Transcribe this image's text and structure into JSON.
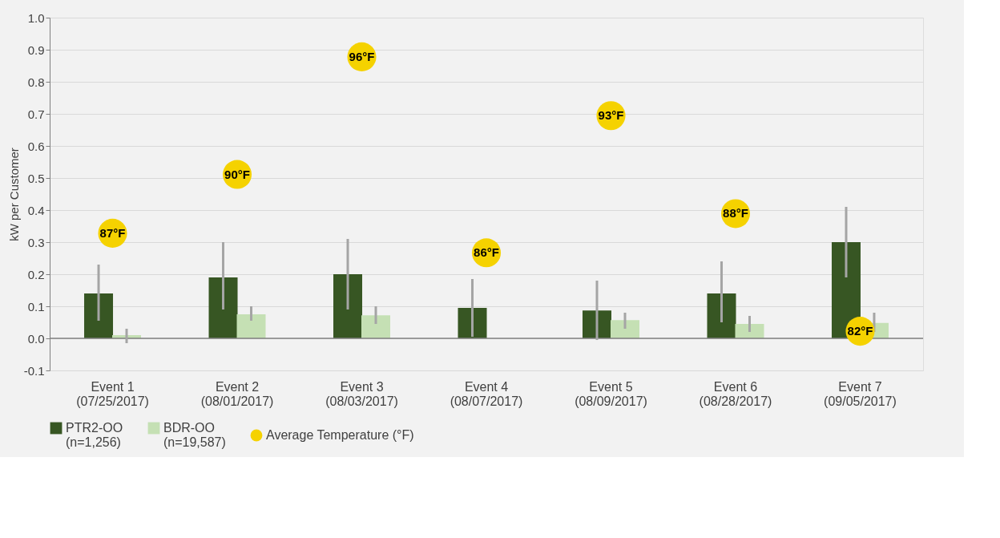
{
  "chart_data": {
    "type": "bar",
    "ylabel": "kW per Customer",
    "categories": [
      "Event 1\n(07/25/2017)",
      "Event 2\n(08/01/2017)",
      "Event 3\n(08/03/2017)",
      "Event 4\n(08/07/2017)",
      "Event 5\n(08/09/2017)",
      "Event 6\n(08/28/2017)",
      "Event 7\n(09/05/2017)"
    ],
    "series": [
      {
        "name": "PTR2-OO\n(n=1,256)",
        "color": "#375623",
        "values": [
          0.14,
          0.19,
          0.2,
          0.095,
          0.087,
          0.14,
          0.3
        ],
        "errors": [
          [
            0.055,
            0.23
          ],
          [
            0.09,
            0.3
          ],
          [
            0.09,
            0.31
          ],
          [
            0.005,
            0.185
          ],
          [
            -0.005,
            0.18
          ],
          [
            0.05,
            0.24
          ],
          [
            0.19,
            0.41
          ]
        ]
      },
      {
        "name": "BDR-OO\n(n=19,587)",
        "color": "#c5e0b4",
        "values": [
          0.01,
          0.075,
          0.072,
          null,
          0.057,
          0.045,
          0.048
        ],
        "errors": [
          [
            -0.015,
            0.03
          ],
          [
            0.055,
            0.1
          ],
          [
            0.045,
            0.1
          ],
          null,
          [
            0.03,
            0.08
          ],
          [
            0.02,
            0.07
          ],
          [
            0.02,
            0.08
          ]
        ]
      },
      {
        "name": "Average Temperature (°F)",
        "type": "scatter",
        "axis": "y2",
        "color": "#f5d200",
        "values": [
          87,
          90,
          96,
          86,
          93,
          88,
          82
        ],
        "value_labels": [
          "87°F",
          "90°F",
          "96°F",
          "86°F",
          "93°F",
          "88°F",
          "82°F"
        ]
      }
    ],
    "ylim": [
      -0.1,
      1.0
    ],
    "yticks": [
      {
        "value": -0.1,
        "label": "-0.1"
      },
      {
        "value": 0,
        "label": "0.0"
      },
      {
        "value": 0.1,
        "label": "0.1"
      },
      {
        "value": 0.2,
        "label": "0.2"
      },
      {
        "value": 0.3,
        "label": "0.3"
      },
      {
        "value": 0.4,
        "label": "0.4"
      },
      {
        "value": 0.5,
        "label": "0.5"
      },
      {
        "value": 0.6,
        "label": "0.6"
      },
      {
        "value": 0.7,
        "label": "0.7"
      },
      {
        "value": 0.8,
        "label": "0.8"
      },
      {
        "value": 0.9,
        "label": "0.9"
      },
      {
        "value": 1.0,
        "label": "1.0"
      }
    ],
    "y2lim": [
      80,
      98
    ],
    "grid": "y",
    "legend": "bottom",
    "marker": "circle"
  }
}
